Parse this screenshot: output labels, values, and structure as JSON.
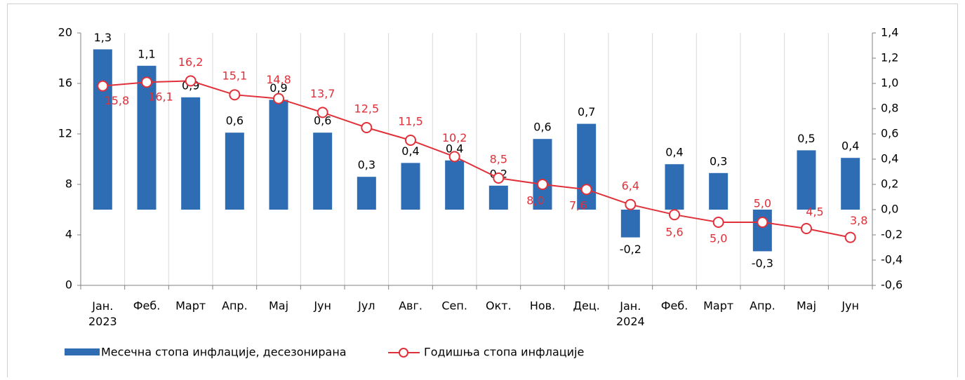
{
  "chart_data": {
    "type": "bar-line",
    "categories": [
      "Јан.\n2023",
      "Феб.",
      "Март",
      "Апр.",
      "Мај",
      "Јун",
      "Јул",
      "Авг.",
      "Сеп.",
      "Окт.",
      "Нов.",
      "Дец.",
      "Јан.\n2024",
      "Феб.",
      "Март",
      "Апр.",
      "Мај",
      "Јун"
    ],
    "series": [
      {
        "name": "Месечна стопа инфлације, десезонирана",
        "type": "bar",
        "axis": "y2",
        "color": "#2e6db4",
        "values": [
          1.27,
          1.14,
          0.89,
          0.61,
          0.87,
          0.61,
          0.26,
          0.37,
          0.39,
          0.19,
          0.56,
          0.68,
          -0.22,
          0.36,
          0.29,
          -0.33,
          0.47,
          0.41
        ],
        "value_labels": [
          "1,3",
          "1,1",
          "0,9",
          "0,6",
          "0,9",
          "0,6",
          "0,3",
          "0,4",
          "0,4",
          "0,2",
          "0,6",
          "0,7",
          "-0,2",
          "0,4",
          "0,3",
          "-0,3",
          "0,5",
          "0,4"
        ]
      },
      {
        "name": "Годишња стопа инфлације",
        "type": "line",
        "axis": "y",
        "color": "#e0303a",
        "values": [
          15.8,
          16.1,
          16.2,
          15.1,
          14.8,
          13.7,
          12.5,
          11.5,
          10.2,
          8.5,
          8.0,
          7.6,
          6.4,
          5.6,
          5.0,
          5.0,
          4.5,
          3.8
        ],
        "value_labels": [
          "15,8",
          "16,1",
          "16,2",
          "15,1",
          "14,8",
          "13,7",
          "12,5",
          "11,5",
          "10,2",
          "8,5",
          "8,0",
          "7,6",
          "6,4",
          "5,6",
          "5,0",
          "5,0",
          "4,5",
          "3,8"
        ]
      }
    ],
    "ylim": [
      0,
      20
    ],
    "yticks": [
      0,
      4,
      8,
      12,
      16,
      20
    ],
    "y2lim": [
      -0.6,
      1.4
    ],
    "y2ticks": [
      {
        "value": -0.6,
        "label": "-0,6"
      },
      {
        "value": -0.4,
        "label": "-0,4"
      },
      {
        "value": -0.2,
        "label": "-0,2"
      },
      {
        "value": 0,
        "label": "0,0"
      },
      {
        "value": 0.2,
        "label": "0,2"
      },
      {
        "value": 0.4,
        "label": "0,4"
      },
      {
        "value": 0.6,
        "label": "0,6"
      },
      {
        "value": 0.8,
        "label": "0,8"
      },
      {
        "value": 1.0,
        "label": "1,0"
      },
      {
        "value": 1.2,
        "label": "1,2"
      },
      {
        "value": 1.4,
        "label": "1,4"
      }
    ],
    "grid": "vertical",
    "legend": "bottom-left"
  }
}
